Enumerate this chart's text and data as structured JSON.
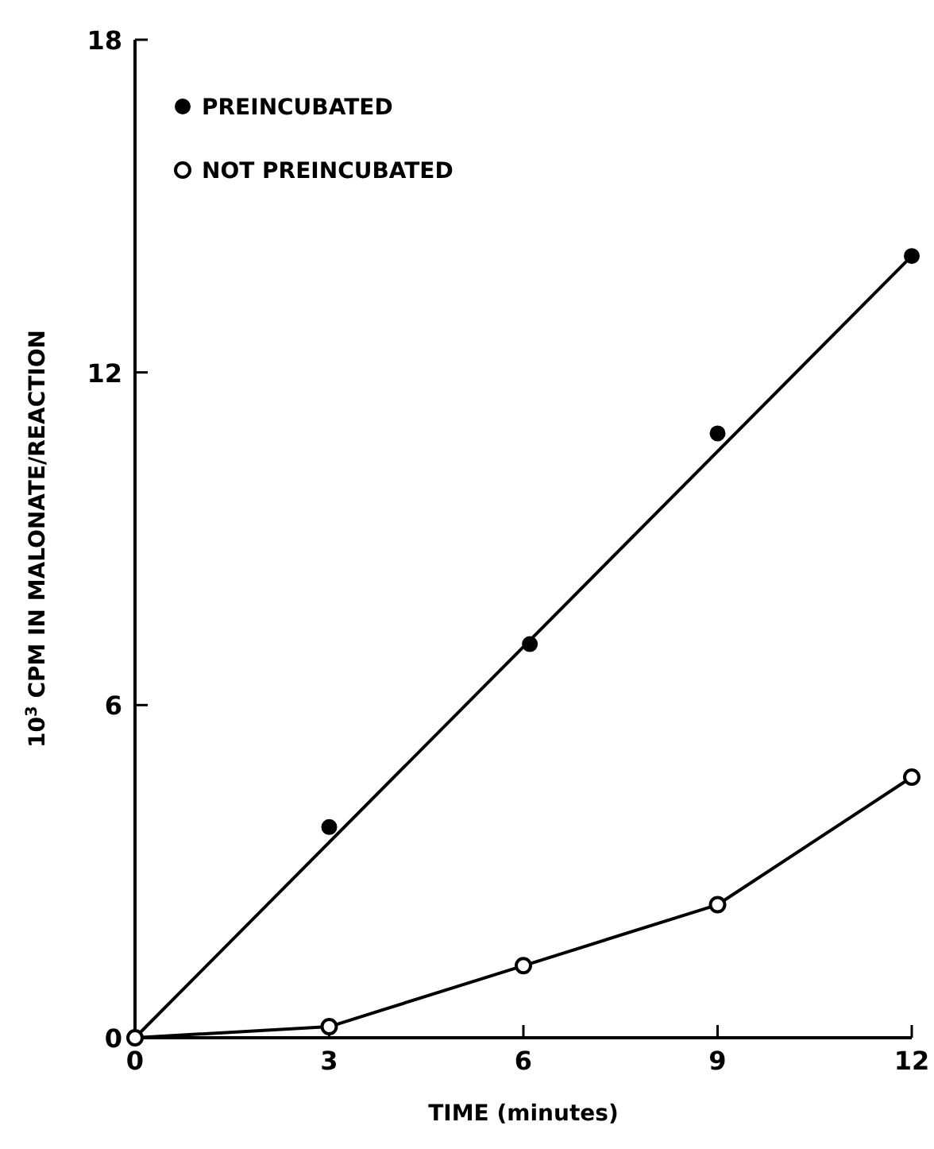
{
  "chart_data": {
    "type": "scatter",
    "xlabel": "TIME (minutes)",
    "ylabel": "10$^{3}$ CPM IN MALONATE/REACTION",
    "xlim": [
      0,
      12
    ],
    "ylim": [
      0,
      18
    ],
    "xticks": [
      0,
      3,
      6,
      9,
      12
    ],
    "yticks": [
      0,
      6,
      12,
      18
    ],
    "legend": "top left",
    "grid": false,
    "series": [
      {
        "name": "PREINCUBATED",
        "type": "scatter",
        "color": "#000000",
        "marker": "circle",
        "x": [
          3,
          6.1,
          9,
          12
        ],
        "values": [
          3.8,
          7.1,
          10.9,
          14.1
        ]
      },
      {
        "type": "line",
        "color": "#000000",
        "x": [
          0,
          12
        ],
        "values": [
          0,
          14.1
        ]
      },
      {
        "name": "NOT PREINCUBATED",
        "type": "line",
        "color": "#000000",
        "marker": "circle",
        "x": [
          0,
          3,
          6,
          9,
          12
        ],
        "values": [
          0,
          0.2,
          1.3,
          2.4,
          4.7
        ]
      }
    ]
  }
}
